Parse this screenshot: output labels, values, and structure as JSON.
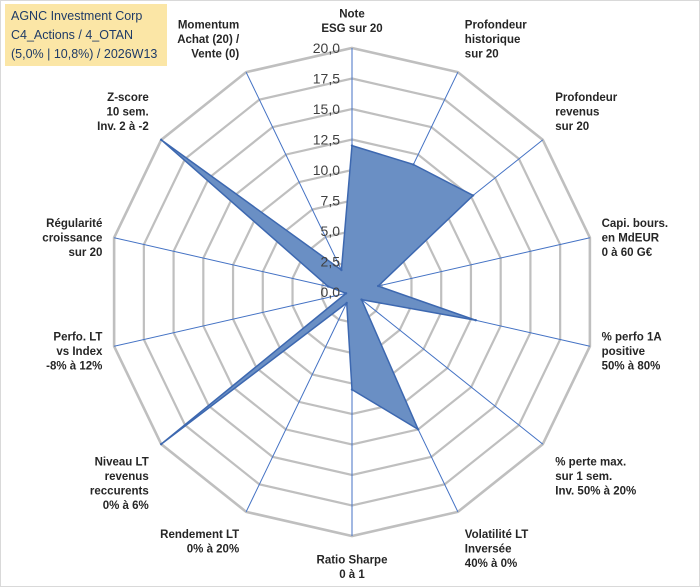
{
  "header": {
    "line1": "AGNC Investment Corp",
    "line2": "C4_Actions / 4_OTAN",
    "line3": "(5,0% | 10,8%) / 2026W13"
  },
  "colors": {
    "fill": "#6a8fc4",
    "stroke": "#3d68b0",
    "grid": "#bfbfbf",
    "spoke": "#4472c4",
    "title_bg": "#fbe6a6"
  },
  "chart_data": {
    "type": "radar",
    "title": "AGNC Investment Corp",
    "rmin": 0,
    "rmax": 20,
    "step": 2.5,
    "ticks": [
      "0,0",
      "2,5",
      "5,0",
      "7,5",
      "10,0",
      "12,5",
      "15,0",
      "17,5",
      "20,0"
    ],
    "categories": [
      [
        "Note",
        "ESG sur 20"
      ],
      [
        "Profondeur",
        "historique",
        "sur 20"
      ],
      [
        "Profondeur",
        "revenus",
        "sur 20"
      ],
      [
        "Capi. bours.",
        "en MdEUR",
        "0 à 60 G€"
      ],
      [
        "% perfo 1A",
        "positive",
        "50% à 80%"
      ],
      [
        "% perte max.",
        "sur 1 sem.",
        "Inv. 50% à 20%"
      ],
      [
        "Volatilité LT",
        "Inversée",
        "40% à 0%"
      ],
      [
        "Ratio Sharpe",
        "0 à 1"
      ],
      [
        "Rendement LT",
        "0% à 20%"
      ],
      [
        "Niveau LT",
        "revenus",
        "reccurents",
        "0% à 6%"
      ],
      [
        "Perfo. LT",
        "vs Index",
        "-8% à 12%"
      ],
      [
        "Régularité",
        "croissance",
        "sur 20"
      ],
      [
        "Z-score",
        "10 sem.",
        "Inv. 2 à -2"
      ],
      [
        "Momentum",
        "Achat (20) /",
        "Vente (0)"
      ]
    ],
    "series": [
      {
        "name": "AGNC Investment Corp",
        "values": [
          12.0,
          11.6,
          12.7,
          2.2,
          10.4,
          1.0,
          12.5,
          8.0,
          1.0,
          20.0,
          0.5,
          2.0,
          20.0,
          2.0
        ]
      }
    ]
  }
}
